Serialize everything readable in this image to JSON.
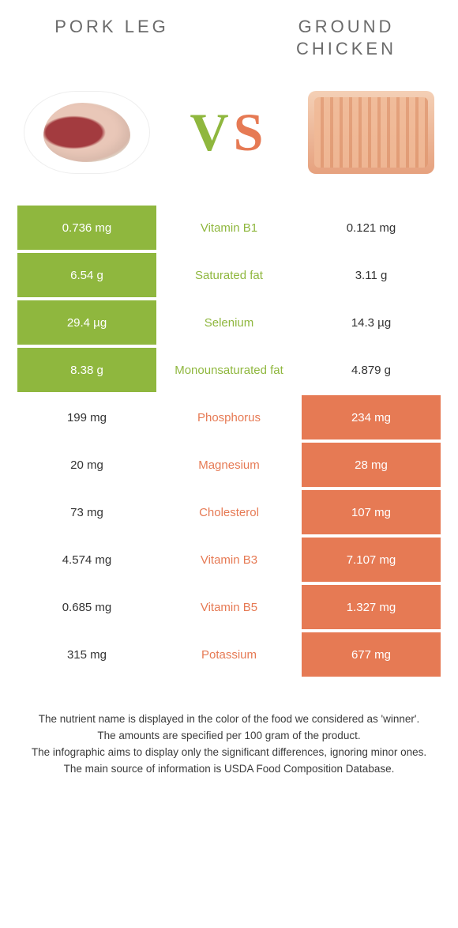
{
  "colors": {
    "green": "#8fb73e",
    "orange": "#e67a54",
    "gray_title": "#6b6b6b",
    "text": "#333333",
    "white": "#ffffff"
  },
  "titles": {
    "left": "Pork leg",
    "right": "Ground chicken"
  },
  "vs": {
    "v": "V",
    "s": "S"
  },
  "rows": [
    {
      "nutrient": "Vitamin B1",
      "left": "0.736 mg",
      "right": "0.121 mg",
      "winner": "left"
    },
    {
      "nutrient": "Saturated fat",
      "left": "6.54 g",
      "right": "3.11 g",
      "winner": "left"
    },
    {
      "nutrient": "Selenium",
      "left": "29.4 µg",
      "right": "14.3 µg",
      "winner": "left"
    },
    {
      "nutrient": "Monounsaturated fat",
      "left": "8.38 g",
      "right": "4.879 g",
      "winner": "left"
    },
    {
      "nutrient": "Phosphorus",
      "left": "199 mg",
      "right": "234 mg",
      "winner": "right"
    },
    {
      "nutrient": "Magnesium",
      "left": "20 mg",
      "right": "28 mg",
      "winner": "right"
    },
    {
      "nutrient": "Cholesterol",
      "left": "73 mg",
      "right": "107 mg",
      "winner": "right"
    },
    {
      "nutrient": "Vitamin B3",
      "left": "4.574 mg",
      "right": "7.107 mg",
      "winner": "right"
    },
    {
      "nutrient": "Vitamin B5",
      "left": "0.685 mg",
      "right": "1.327 mg",
      "winner": "right"
    },
    {
      "nutrient": "Potassium",
      "left": "315 mg",
      "right": "677 mg",
      "winner": "right"
    }
  ],
  "footnotes": [
    "The nutrient name is displayed in the color of the food we considered as 'winner'.",
    "The amounts are specified per 100 gram of the product.",
    "The infographic aims to display only the significant differences, ignoring minor ones.",
    "The main source of information is USDA Food Composition Database."
  ]
}
